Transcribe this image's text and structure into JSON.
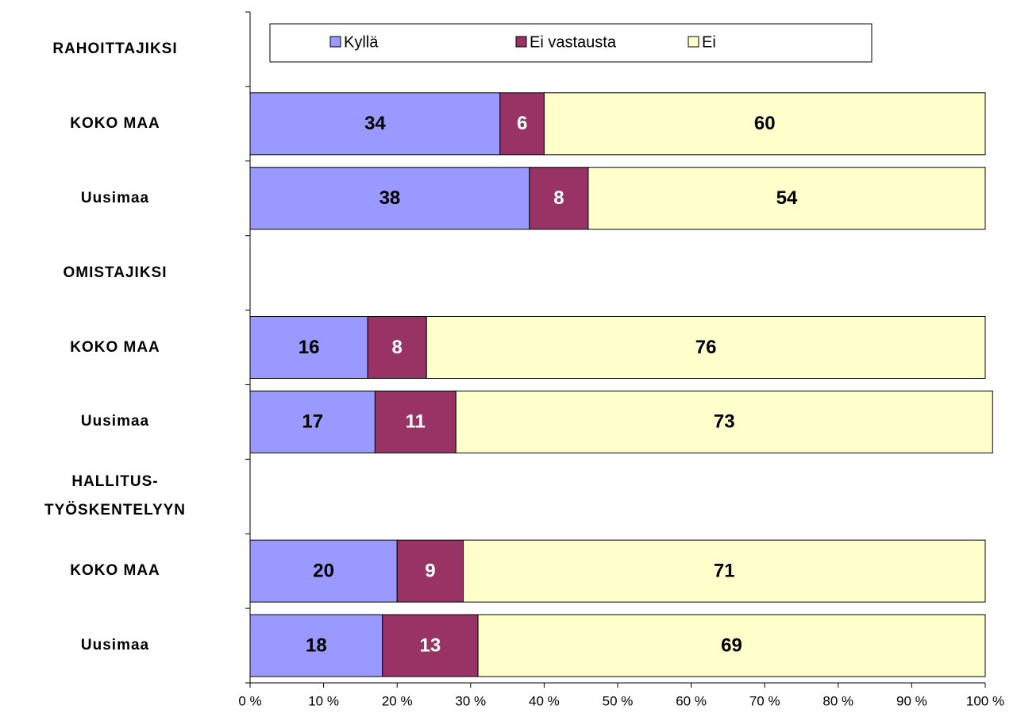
{
  "chart_data": {
    "type": "stacked_barh",
    "categories": [
      "RAHOITTAJIKSI",
      "KOKO MAA",
      "Uusimaa",
      "OMISTAJIKSI",
      "KOKO MAA",
      "Uusimaa",
      "HALLITUS-\nTYÖSKENTELYYN",
      "KOKO MAA",
      "Uusimaa"
    ],
    "series": [
      {
        "name": "Kyllä",
        "color": "#9999ff",
        "label_color": "#000000",
        "values": [
          null,
          34,
          38,
          null,
          16,
          17,
          null,
          20,
          18
        ]
      },
      {
        "name": "Ei vastausta",
        "color": "#993366",
        "label_color": "#ffffff",
        "values": [
          null,
          6,
          8,
          null,
          8,
          11,
          null,
          9,
          13
        ]
      },
      {
        "name": "Ei",
        "color": "#ffffcc",
        "label_color": "#000000",
        "values": [
          null,
          60,
          54,
          null,
          76,
          73,
          null,
          71,
          69
        ]
      }
    ],
    "xlim": [
      0,
      100
    ],
    "xticks": [
      {
        "value": 0,
        "label": "0 %"
      },
      {
        "value": 10,
        "label": "10 %"
      },
      {
        "value": 20,
        "label": "20 %"
      },
      {
        "value": 30,
        "label": "30 %"
      },
      {
        "value": 40,
        "label": "40 %"
      },
      {
        "value": 50,
        "label": "50 %"
      },
      {
        "value": 60,
        "label": "60 %"
      },
      {
        "value": 70,
        "label": "70 %"
      },
      {
        "value": 80,
        "label": "80 %"
      },
      {
        "value": 90,
        "label": "90 %"
      },
      {
        "value": 100,
        "label": "100 %"
      }
    ],
    "legend": "top"
  }
}
